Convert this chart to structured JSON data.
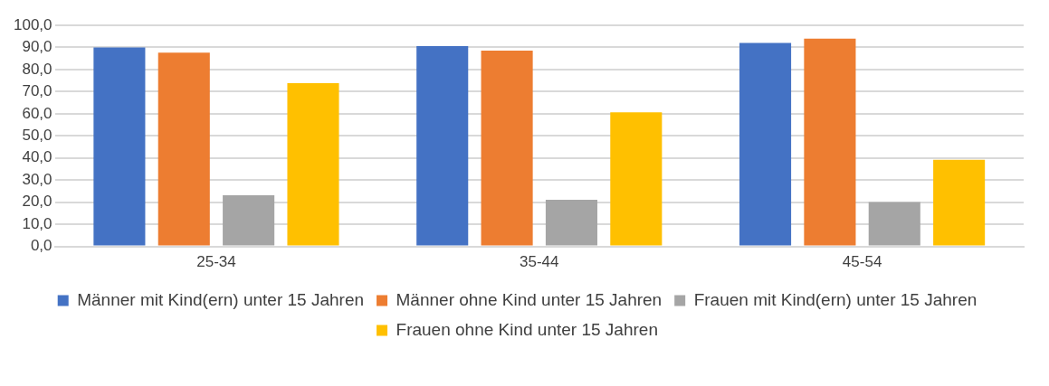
{
  "chart_data": {
    "type": "bar",
    "categories": [
      "25-34",
      "35-44",
      "45-54"
    ],
    "series": [
      {
        "name": "Männer mit Kind(ern) unter 15 Jahren",
        "color": "#4472c4",
        "values": [
          90.0,
          90.6,
          92.0
        ]
      },
      {
        "name": "Männer ohne Kind unter 15 Jahren",
        "color": "#ed7d31",
        "values": [
          87.6,
          88.6,
          94.0
        ]
      },
      {
        "name": "Frauen mit Kind(ern) unter 15 Jahren",
        "color": "#a5a5a5",
        "values": [
          23.1,
          21.1,
          20.1
        ]
      },
      {
        "name": "Frauen ohne Kind unter 15 Jahren",
        "color": "#ffc000",
        "values": [
          73.8,
          60.6,
          39.2
        ]
      }
    ],
    "ylim": [
      0,
      100
    ],
    "yticks": [
      {
        "value": 0,
        "label": "0,0"
      },
      {
        "value": 10,
        "label": "10,0"
      },
      {
        "value": 20,
        "label": "20,0"
      },
      {
        "value": 30,
        "label": "30,0"
      },
      {
        "value": 40,
        "label": "40,0"
      },
      {
        "value": 50,
        "label": "50,0"
      },
      {
        "value": 60,
        "label": "60,0"
      },
      {
        "value": 70,
        "label": "70,0"
      },
      {
        "value": 80,
        "label": "80,0"
      },
      {
        "value": 90,
        "label": "90,0"
      },
      {
        "value": 100,
        "label": "100,0"
      }
    ],
    "grid": "y",
    "legend": "bottom"
  }
}
